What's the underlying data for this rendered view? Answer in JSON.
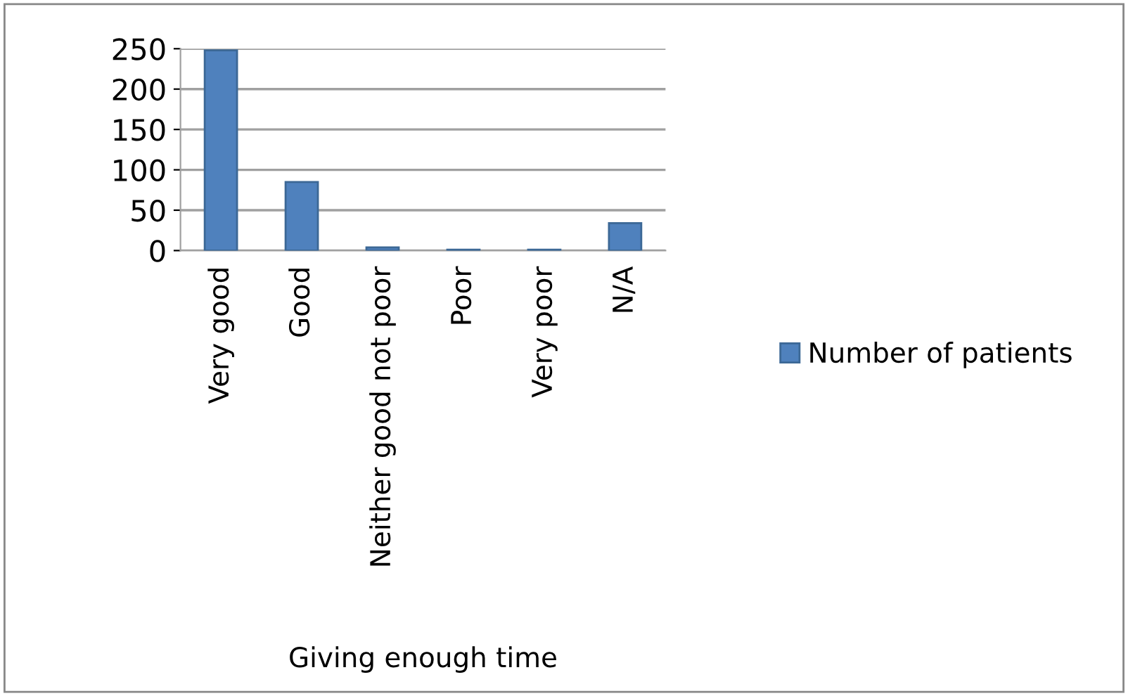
{
  "chart_data": {
    "type": "bar",
    "xlabel": "Giving enough time",
    "categories": [
      "Very good",
      "Good",
      "Neither good not poor",
      "Poor",
      "Very poor",
      "N/A"
    ],
    "series": [
      {
        "name": "Number of patients",
        "color": "#4f81bd",
        "values": [
          248,
          85,
          4,
          1,
          1,
          34
        ]
      }
    ],
    "ylim": [
      0,
      250
    ],
    "yticks": [
      0,
      50,
      100,
      150,
      200,
      250
    ],
    "grid": "y",
    "legend": "right"
  }
}
